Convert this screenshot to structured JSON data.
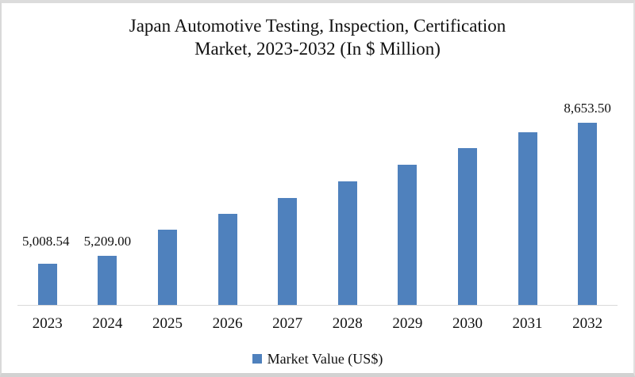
{
  "title": {
    "line1": "Japan Automotive Testing, Inspection, Certification",
    "line2": "Market, 2023-2032 (In $ Million)"
  },
  "legend": {
    "label": "Market Value (US$)",
    "marker_color": "#4f81bd"
  },
  "chart_data": {
    "type": "bar",
    "title": "Japan Automotive Testing, Inspection, Certification Market, 2023-2032 (In $ Million)",
    "xlabel": "",
    "ylabel": "",
    "categories": [
      "2023",
      "2024",
      "2025",
      "2026",
      "2027",
      "2028",
      "2029",
      "2030",
      "2031",
      "2032"
    ],
    "series": [
      {
        "name": "Market Value (US$)",
        "values": [
          5008.54,
          5209.0,
          5840,
          6240,
          6630,
          7030,
          7440,
          7850,
          8250,
          8653.5
        ],
        "data_labels": [
          "5,008.54",
          "5,209.00",
          "",
          "",
          "",
          "",
          "",
          "",
          "",
          "8,653.50"
        ]
      }
    ],
    "ylim": [
      4000,
      9000
    ],
    "grid": false,
    "y_axis_visible": false,
    "legend_position": "bottom",
    "bar_color": "#4f81bd",
    "axis_line_color": "#d9d9d9"
  }
}
